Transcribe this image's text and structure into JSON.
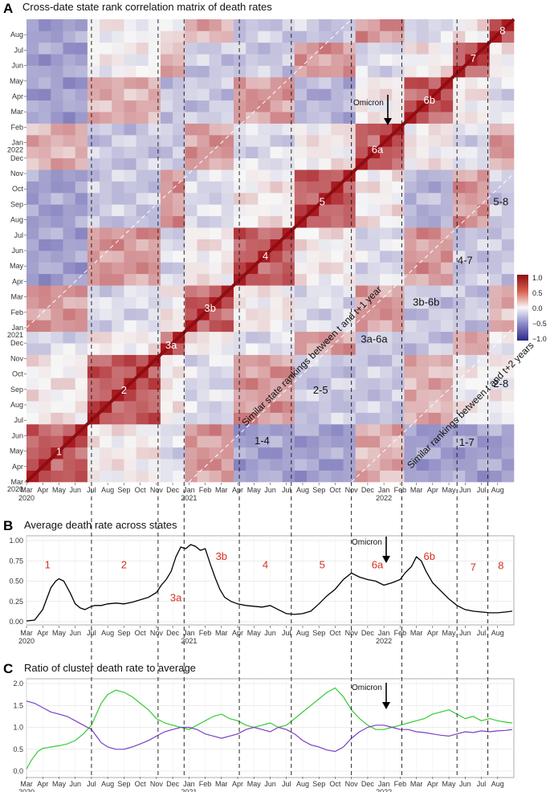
{
  "panels": {
    "a": {
      "letter": "A",
      "title": "Cross-date state rank correlation matrix of death rates"
    },
    "b": {
      "letter": "B",
      "title": "Average death rate across states"
    },
    "c": {
      "letter": "C",
      "title": "Ratio of cluster death rate to average"
    }
  },
  "x_axis": {
    "months": [
      "Mar",
      "Apr",
      "May",
      "Jun",
      "Jul",
      "Aug",
      "Sep",
      "Oct",
      "Nov",
      "Dec",
      "Jan",
      "Feb",
      "Mar",
      "Apr",
      "May",
      "Jun",
      "Jul",
      "Aug",
      "Sep",
      "Oct",
      "Nov",
      "Dec",
      "Jan",
      "Feb",
      "Mar",
      "Apr",
      "May",
      "Jun",
      "Jul",
      "Aug"
    ],
    "years": [
      {
        "label": "2020",
        "month_index": 0
      },
      {
        "label": "2021",
        "month_index": 10
      },
      {
        "label": "2022",
        "month_index": 22
      }
    ]
  },
  "a_y_axis": {
    "months": [
      "Mar",
      "Apr",
      "May",
      "Jun",
      "Jul",
      "Aug",
      "Sep",
      "Oct",
      "Nov",
      "Dec",
      "Jan",
      "Feb",
      "Mar",
      "Apr",
      "May",
      "Jun",
      "Jul",
      "Aug",
      "Sep",
      "Oct",
      "Nov",
      "Dec",
      "Jan",
      "Feb",
      "Mar",
      "Apr",
      "May",
      "Jun",
      "Jul",
      "Aug"
    ],
    "years": [
      {
        "label": "2020",
        "month_index": 0
      },
      {
        "label": "2021",
        "month_index": 10
      },
      {
        "label": "2022",
        "month_index": 22
      }
    ]
  },
  "boundaries_month": [
    4.0,
    8.1,
    9.7,
    13.1,
    16.3,
    20.0,
    23.1,
    26.5,
    28.4
  ],
  "omicron_month": 21.9,
  "annotations": {
    "omicron": "Omicron",
    "diag1": "Similar state rankings between t and t+1 year",
    "diag2": "Similar rankings between t and t+2 years"
  },
  "legend": {
    "ticks": [
      "1.0",
      "0.5",
      "0.0",
      "−0.5",
      "−1.0"
    ],
    "high_color": "#a50f15",
    "mid_color": "#f7f7f7",
    "low_color": "#3f3a9d"
  },
  "chart_data": [
    {
      "type": "heatmap",
      "title": "Cross-date state rank correlation matrix of death rates",
      "xlabel": "",
      "ylabel": "",
      "range": [
        -1.0,
        1.0
      ],
      "x_range": [
        "Mar 2020",
        "Aug 2022"
      ],
      "y_range": [
        "Mar 2020",
        "Aug 2022"
      ],
      "diagonal_clusters": [
        {
          "label": "1",
          "month": 2.0
        },
        {
          "label": "2",
          "month": 6.0
        },
        {
          "label": "3a",
          "month": 8.9
        },
        {
          "label": "3b",
          "month": 11.3
        },
        {
          "label": "4",
          "month": 14.7
        },
        {
          "label": "5",
          "month": 18.2
        },
        {
          "label": "6a",
          "month": 21.6
        },
        {
          "label": "6b",
          "month": 24.8
        },
        {
          "label": "7",
          "month": 27.5
        },
        {
          "label": "8",
          "month": 29.3
        }
      ],
      "offdiagonal_labels": [
        {
          "label": "1-4",
          "x": 14.5,
          "y": 2.7
        },
        {
          "label": "2-5",
          "x": 18.1,
          "y": 6.0
        },
        {
          "label": "3a-6a",
          "x": 21.4,
          "y": 9.3
        },
        {
          "label": "3b-6b",
          "x": 24.6,
          "y": 11.7
        },
        {
          "label": "4-7",
          "x": 27.0,
          "y": 14.4
        },
        {
          "label": "5-8",
          "x": 29.2,
          "y": 18.2
        },
        {
          "label": "1-7",
          "x": 27.1,
          "y": 2.6
        },
        {
          "label": "2-8",
          "x": 29.2,
          "y": 6.4
        }
      ]
    },
    {
      "type": "line",
      "title": "Average death rate across states",
      "xlabel": "",
      "ylabel": "",
      "ylim": [
        0,
        1.0
      ],
      "yticks": [
        "0.00",
        "0.25",
        "0.50",
        "0.75",
        "1.00"
      ],
      "series": [
        {
          "color": "#000000",
          "x": [
            0,
            0.5,
            1.0,
            1.5,
            1.8,
            2.0,
            2.3,
            2.7,
            3.0,
            3.3,
            3.6,
            3.9,
            4.2,
            4.6,
            5.0,
            5.5,
            6.0,
            6.5,
            7.0,
            7.5,
            8.0,
            8.3,
            8.6,
            8.9,
            9.2,
            9.5,
            9.8,
            10.1,
            10.4,
            10.7,
            11.0,
            11.3,
            11.6,
            11.9,
            12.2,
            12.6,
            13.0,
            13.5,
            14.0,
            14.5,
            15.0,
            15.5,
            16.0,
            16.5,
            17.0,
            17.5,
            18.0,
            18.5,
            19.0,
            19.5,
            20.0,
            20.5,
            21.0,
            21.5,
            22.0,
            22.5,
            23.0,
            23.3,
            23.7,
            24.0,
            24.3,
            24.6,
            25.0,
            25.5,
            26.0,
            26.5,
            27.0,
            27.5,
            28.0,
            28.5,
            29.0,
            29.5,
            29.9
          ],
          "y": [
            0.01,
            0.02,
            0.15,
            0.42,
            0.5,
            0.53,
            0.5,
            0.35,
            0.22,
            0.17,
            0.15,
            0.18,
            0.2,
            0.2,
            0.22,
            0.23,
            0.22,
            0.24,
            0.27,
            0.3,
            0.36,
            0.45,
            0.52,
            0.62,
            0.8,
            0.92,
            0.9,
            0.95,
            0.93,
            0.88,
            0.9,
            0.72,
            0.55,
            0.4,
            0.3,
            0.25,
            0.22,
            0.2,
            0.19,
            0.18,
            0.2,
            0.15,
            0.1,
            0.09,
            0.1,
            0.13,
            0.22,
            0.32,
            0.4,
            0.52,
            0.6,
            0.55,
            0.52,
            0.5,
            0.45,
            0.48,
            0.52,
            0.6,
            0.68,
            0.8,
            0.75,
            0.62,
            0.48,
            0.38,
            0.28,
            0.2,
            0.15,
            0.13,
            0.12,
            0.11,
            0.11,
            0.12,
            0.13
          ]
        }
      ],
      "cluster_labels": [
        {
          "label": "1",
          "month": 1.3,
          "y": 0.71
        },
        {
          "label": "2",
          "month": 6.0,
          "y": 0.71
        },
        {
          "label": "3a",
          "month": 9.2,
          "y": 0.3
        },
        {
          "label": "3b",
          "month": 12.0,
          "y": 0.81
        },
        {
          "label": "4",
          "month": 14.7,
          "y": 0.71
        },
        {
          "label": "5",
          "month": 18.2,
          "y": 0.71
        },
        {
          "label": "6a",
          "month": 21.6,
          "y": 0.71
        },
        {
          "label": "6b",
          "month": 24.8,
          "y": 0.81
        },
        {
          "label": "7",
          "month": 27.5,
          "y": 0.68
        },
        {
          "label": "8",
          "month": 29.2,
          "y": 0.7
        }
      ]
    },
    {
      "type": "line",
      "title": "Ratio of cluster death rate to average",
      "xlabel": "",
      "ylabel": "",
      "ylim": [
        0,
        2.0
      ],
      "yticks": [
        "0.0",
        "0.5",
        "1.0",
        "1.5",
        "2.0"
      ],
      "series": [
        {
          "color": "#33cc33",
          "x": [
            0,
            0.3,
            0.7,
            1.0,
            1.5,
            2.0,
            2.5,
            3.0,
            3.5,
            4.0,
            4.3,
            4.6,
            5.0,
            5.5,
            6.0,
            6.5,
            7.0,
            7.5,
            8.0,
            8.5,
            9.0,
            9.5,
            10.0,
            10.5,
            11.0,
            11.5,
            12.0,
            12.5,
            13.0,
            13.5,
            14.0,
            14.5,
            15.0,
            15.5,
            16.0,
            16.5,
            17.0,
            17.5,
            18.0,
            18.5,
            19.0,
            19.5,
            20.0,
            20.5,
            21.0,
            21.5,
            22.0,
            22.5,
            23.0,
            23.5,
            24.0,
            24.5,
            25.0,
            25.5,
            26.0,
            26.5,
            27.0,
            27.5,
            28.0,
            28.5,
            29.0,
            29.5,
            29.9
          ],
          "y": [
            0.05,
            0.25,
            0.45,
            0.52,
            0.55,
            0.58,
            0.62,
            0.7,
            0.85,
            1.05,
            1.3,
            1.55,
            1.75,
            1.85,
            1.8,
            1.7,
            1.55,
            1.4,
            1.2,
            1.1,
            1.05,
            1.0,
            0.95,
            1.05,
            1.15,
            1.25,
            1.3,
            1.2,
            1.15,
            1.05,
            1.0,
            1.05,
            1.1,
            1.0,
            1.05,
            1.2,
            1.35,
            1.5,
            1.65,
            1.8,
            1.9,
            1.7,
            1.4,
            1.2,
            1.05,
            0.95,
            0.95,
            1.0,
            1.05,
            1.1,
            1.15,
            1.2,
            1.3,
            1.35,
            1.4,
            1.3,
            1.2,
            1.25,
            1.15,
            1.2,
            1.15,
            1.12,
            1.1
          ]
        },
        {
          "color": "#7b3fc4",
          "x": [
            0,
            0.5,
            1.0,
            1.5,
            2.0,
            2.5,
            3.0,
            3.5,
            4.0,
            4.3,
            4.6,
            5.0,
            5.5,
            6.0,
            6.5,
            7.0,
            7.5,
            8.0,
            8.5,
            9.0,
            9.5,
            10.0,
            10.5,
            11.0,
            11.5,
            12.0,
            12.5,
            13.0,
            13.5,
            14.0,
            14.5,
            15.0,
            15.5,
            16.0,
            16.5,
            17.0,
            17.5,
            18.0,
            18.5,
            19.0,
            19.5,
            20.0,
            20.5,
            21.0,
            21.5,
            22.0,
            22.5,
            23.0,
            23.5,
            24.0,
            24.5,
            25.0,
            25.5,
            26.0,
            26.5,
            27.0,
            27.5,
            28.0,
            28.5,
            29.0,
            29.5,
            29.9
          ],
          "y": [
            1.6,
            1.55,
            1.45,
            1.35,
            1.3,
            1.25,
            1.15,
            1.05,
            0.95,
            0.8,
            0.65,
            0.55,
            0.5,
            0.5,
            0.55,
            0.62,
            0.7,
            0.8,
            0.9,
            0.95,
            1.0,
            1.0,
            0.95,
            0.85,
            0.8,
            0.75,
            0.8,
            0.85,
            0.95,
            1.0,
            0.95,
            0.9,
            1.0,
            0.95,
            0.85,
            0.7,
            0.6,
            0.55,
            0.48,
            0.45,
            0.55,
            0.75,
            0.9,
            1.0,
            1.05,
            1.05,
            1.0,
            0.95,
            0.95,
            0.9,
            0.88,
            0.85,
            0.82,
            0.8,
            0.85,
            0.9,
            0.88,
            0.92,
            0.9,
            0.92,
            0.93,
            0.95
          ]
        }
      ]
    }
  ]
}
